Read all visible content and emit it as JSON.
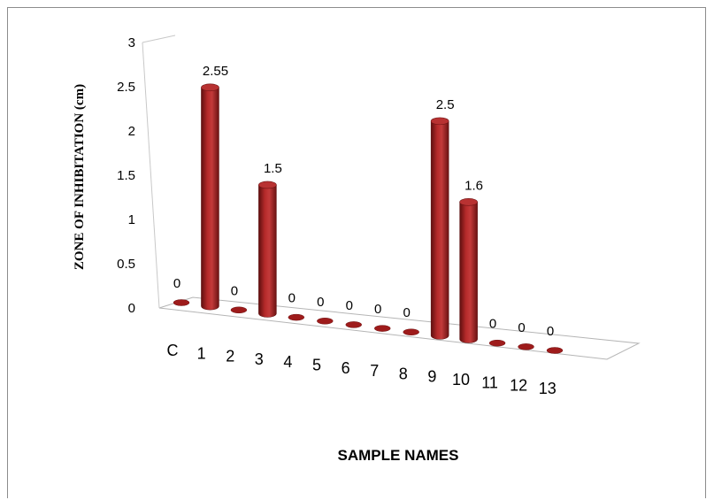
{
  "chart_data": {
    "type": "bar",
    "style": "3d-cylinder",
    "title": "",
    "xlabel": "SAMPLE NAMES",
    "ylabel": "ZONE OF INHIBITATION (cm)",
    "ylim": [
      0,
      3
    ],
    "yticks": [
      "0",
      "0.5",
      "1",
      "1.5",
      "2",
      "2.5",
      "3"
    ],
    "categories": [
      "C",
      "1",
      "2",
      "3",
      "4",
      "5",
      "6",
      "7",
      "8",
      "9",
      "10",
      "11",
      "12",
      "13"
    ],
    "values": [
      0,
      2.55,
      0,
      1.5,
      0,
      0,
      0,
      0,
      0,
      2.5,
      1.6,
      0,
      0,
      0
    ],
    "value_labels": [
      "0",
      "2.55",
      "0",
      "1.5",
      "0",
      "0",
      "0",
      "0",
      "0",
      "2.5",
      "1.6",
      "0",
      "0",
      "0"
    ],
    "bar_color": "#9e1b1b",
    "legend": "none",
    "grid": false
  }
}
